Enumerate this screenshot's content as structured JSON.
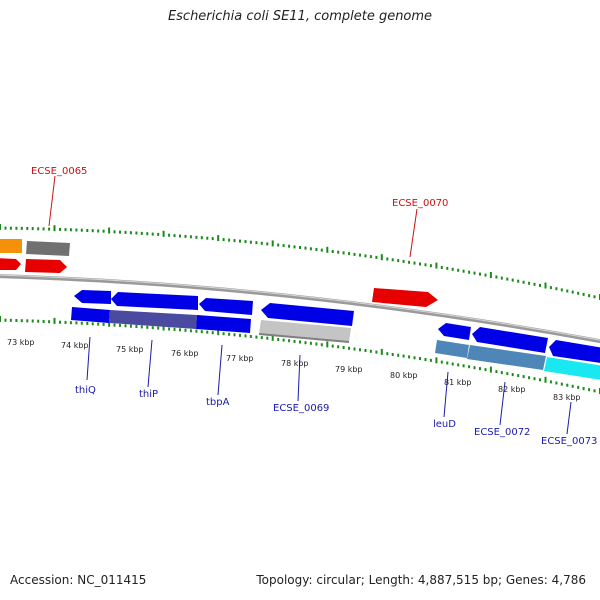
{
  "title": "Escherichia coli SE11, complete genome",
  "footer": {
    "accession": "Accession: NC_011415",
    "summary": "Topology: circular; Length: 4,887,515 bp; Genes: 4,786"
  },
  "colors": {
    "blue": "#0000e6",
    "red": "#e60000",
    "orange": "#f5900a",
    "grey": "#707070",
    "light_grey": "#c4c4c4",
    "steel_blue": "#4f86b8",
    "slate_blue": "#4a4aa0",
    "cyan": "#19e8f0",
    "tick_green": "#1a8a1a",
    "label_blue": "#1a1aaa",
    "label_red": "#cc1111"
  },
  "tick_labels": [
    {
      "text": "73 kbp"
    },
    {
      "text": "74 kbp"
    },
    {
      "text": "75 kbp"
    },
    {
      "text": "76 kbp"
    },
    {
      "text": "77 kbp"
    },
    {
      "text": "78 kbp"
    },
    {
      "text": "79 kbp"
    },
    {
      "text": "80 kbp"
    },
    {
      "text": "81 kbp"
    },
    {
      "text": "82 kbp"
    },
    {
      "text": "83 kbp"
    }
  ],
  "gene_labels": [
    {
      "text": "ECSE_0065",
      "color": "red"
    },
    {
      "text": "ECSE_0070",
      "color": "red"
    },
    {
      "text": "thiQ",
      "color": "blue"
    },
    {
      "text": "thiP",
      "color": "blue"
    },
    {
      "text": "tbpA",
      "color": "blue"
    },
    {
      "text": "ECSE_0069",
      "color": "blue"
    },
    {
      "text": "leuD",
      "color": "blue"
    },
    {
      "text": "ECSE_0072",
      "color": "blue"
    },
    {
      "text": "ECSE_0073",
      "color": "blue"
    }
  ]
}
